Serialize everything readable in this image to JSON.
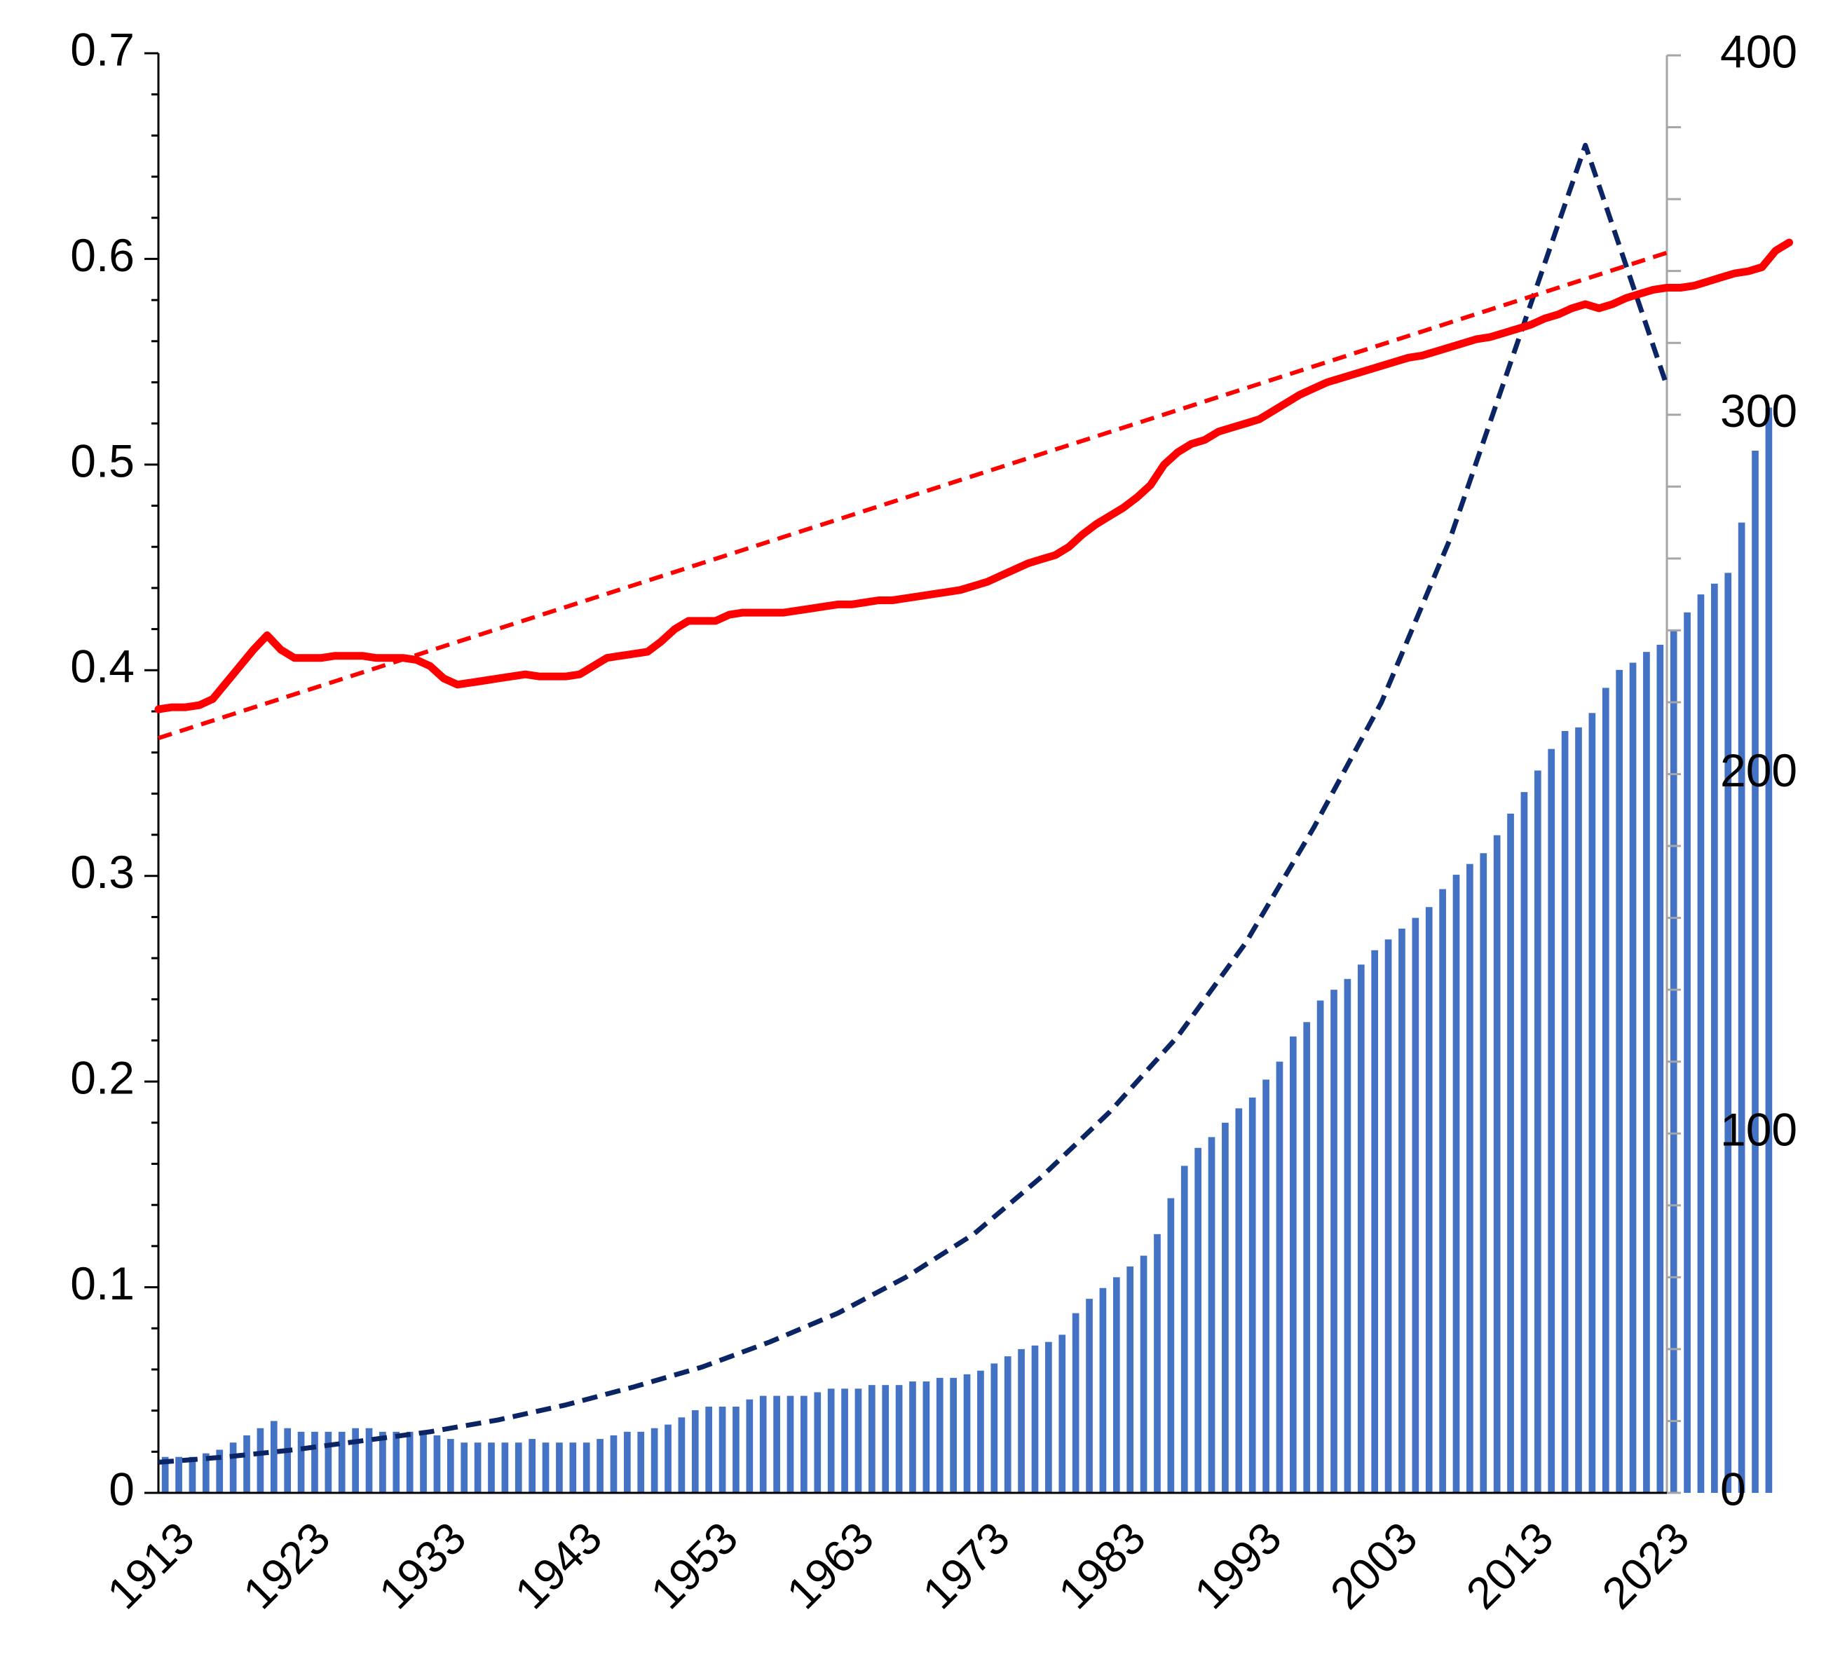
{
  "chart_data": {
    "type": "bar",
    "title": "",
    "xlabel": "",
    "ylabel_left": "",
    "ylabel_right": "",
    "x_tick_labels": [
      "1913",
      "1923",
      "1933",
      "1943",
      "1953",
      "1963",
      "1973",
      "1983",
      "1993",
      "2003",
      "2013",
      "2023"
    ],
    "xlim": [
      1913,
      2024
    ],
    "y_left": {
      "ylim": [
        0,
        0.7
      ],
      "tick_labels": [
        "0",
        "0.1",
        "0.2",
        "0.3",
        "0.4",
        "0.5",
        "0.6",
        "0.7"
      ]
    },
    "y_right": {
      "ylim": [
        0,
        400
      ],
      "tick_labels": [
        "0",
        "100",
        "200",
        "300",
        "400"
      ]
    },
    "grid": false,
    "legend": "none",
    "colors": {
      "bars": "#4472C4",
      "red_line": "#FF0000",
      "red_trend": "#FF0000",
      "blue_trend": "#0B2463",
      "axis_left": "#000000",
      "axis_right": "#A6A6A6"
    },
    "series": [
      {
        "name": "bars",
        "type": "bar",
        "axis": "right",
        "x_start": 1913,
        "values": [
          10,
          10,
          10,
          11,
          12,
          14,
          16,
          18,
          20,
          18,
          17,
          17,
          17,
          17,
          18,
          18,
          17,
          17,
          17,
          17,
          16,
          15,
          14,
          14,
          14,
          14,
          14,
          15,
          14,
          14,
          14,
          14,
          15,
          16,
          17,
          17,
          18,
          19,
          21,
          23,
          24,
          24,
          24,
          26,
          27,
          27,
          27,
          27,
          28,
          29,
          29,
          29,
          30,
          30,
          30,
          31,
          31,
          32,
          32,
          33,
          34,
          36,
          38,
          40,
          41,
          42,
          44,
          50,
          54,
          57,
          60,
          63,
          66,
          72,
          82,
          91,
          96,
          99,
          103,
          107,
          110,
          115,
          120,
          127,
          131,
          137,
          140,
          143,
          147,
          151,
          154,
          157,
          160,
          163,
          168,
          172,
          175,
          178,
          183,
          189,
          195,
          201,
          207,
          212,
          213,
          217,
          224,
          229,
          231,
          234,
          236,
          240,
          245,
          250,
          253,
          256,
          270,
          290,
          302
        ]
      },
      {
        "name": "red_line",
        "type": "line",
        "axis": "left",
        "x_start": 1913,
        "values": [
          0.381,
          0.382,
          0.382,
          0.383,
          0.386,
          0.394,
          0.402,
          0.41,
          0.417,
          0.41,
          0.406,
          0.406,
          0.406,
          0.407,
          0.407,
          0.407,
          0.406,
          0.406,
          0.406,
          0.405,
          0.402,
          0.396,
          0.393,
          0.394,
          0.395,
          0.396,
          0.397,
          0.398,
          0.397,
          0.397,
          0.397,
          0.398,
          0.402,
          0.406,
          0.407,
          0.408,
          0.409,
          0.414,
          0.42,
          0.424,
          0.424,
          0.424,
          0.427,
          0.428,
          0.428,
          0.428,
          0.428,
          0.429,
          0.43,
          0.431,
          0.432,
          0.432,
          0.433,
          0.434,
          0.434,
          0.435,
          0.436,
          0.437,
          0.438,
          0.439,
          0.441,
          0.443,
          0.446,
          0.449,
          0.452,
          0.454,
          0.456,
          0.46,
          0.466,
          0.471,
          0.475,
          0.479,
          0.484,
          0.49,
          0.5,
          0.506,
          0.51,
          0.512,
          0.516,
          0.518,
          0.52,
          0.522,
          0.526,
          0.53,
          0.534,
          0.537,
          0.54,
          0.542,
          0.544,
          0.546,
          0.548,
          0.55,
          0.552,
          0.553,
          0.555,
          0.557,
          0.559,
          0.561,
          0.562,
          0.564,
          0.566,
          0.568,
          0.571,
          0.573,
          0.576,
          0.578,
          0.576,
          0.578,
          0.581,
          0.583,
          0.585,
          0.586,
          0.586,
          0.587,
          0.589,
          0.591,
          0.593,
          0.594,
          0.596,
          0.604,
          0.608
        ]
      },
      {
        "name": "red_trend",
        "type": "line-dashed",
        "axis": "left",
        "x": [
          1913,
          2024
        ],
        "values": [
          0.367,
          0.603
        ]
      },
      {
        "name": "blue_trend",
        "type": "line-dashed",
        "axis": "right",
        "x": [
          1913,
          1918,
          1923,
          1928,
          1933,
          1938,
          1943,
          1948,
          1953,
          1958,
          1963,
          1968,
          1973,
          1978,
          1983,
          1988,
          1993,
          1998,
          2003,
          2008,
          2013,
          2018,
          2024
        ],
        "values": [
          8.5,
          10,
          12,
          14.5,
          17,
          20.3,
          24.5,
          29.5,
          35,
          42,
          50,
          60,
          72,
          88,
          106,
          127,
          153,
          185,
          220,
          265,
          320,
          375,
          308
        ]
      }
    ]
  }
}
